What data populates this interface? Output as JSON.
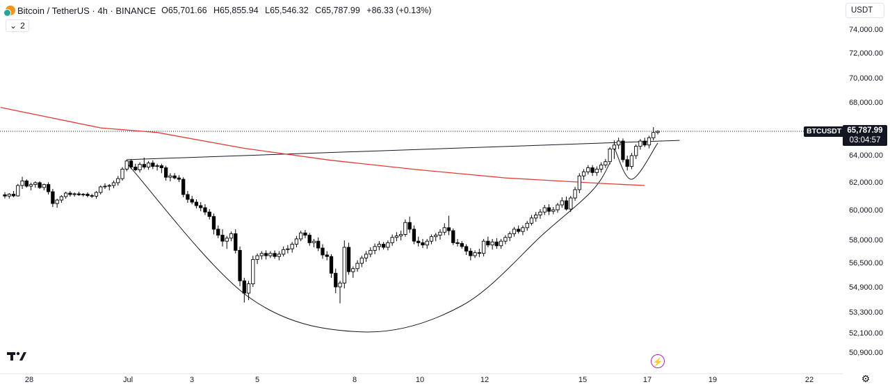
{
  "header": {
    "symbol_title": "Bitcoin / TetherUS · 4h · BINANCE",
    "o_label": "O",
    "o_value": "65,701.66",
    "h_label": "H",
    "h_value": "65,855.94",
    "l_label": "L",
    "l_value": "65,546.32",
    "c_label": "C",
    "c_value": "65,787.99",
    "change": "+86.33 (+0.13%)",
    "indicator_count": "2"
  },
  "currency_select": "USDT",
  "price_tag": {
    "symbol": "BTCUSDT",
    "price": "65,787.99",
    "countdown": "03:04:57"
  },
  "icons": {
    "logo": "tradingview-logo-icon",
    "bolt": "lightning-icon",
    "settings": "gear-icon",
    "chevron": "chevron-down-icon"
  },
  "colors": {
    "up": "#ffffff",
    "down": "#000000",
    "ma_line": "#e53935",
    "pattern": "#131722",
    "accent": "#9c27b0"
  },
  "chart_data": {
    "type": "candlestick",
    "instrument": "BTCUSDT",
    "timeframe": "4h",
    "y_ticks": [
      "74,000.00",
      "72,000.00",
      "70,000.00",
      "68,000.00",
      "64,000.00",
      "62,000.00",
      "60,000.00",
      "58,000.00",
      "56,500.00",
      "54,900.00",
      "53,300.00",
      "52,100.00",
      "50,900.00"
    ],
    "x_ticks": [
      "28",
      "Jul",
      "3",
      "5",
      "8",
      "10",
      "12",
      "15",
      "17",
      "19",
      "22"
    ],
    "last_price": 65787.99,
    "candles": [
      [
        61080,
        61260,
        60820,
        60990
      ],
      [
        60990,
        61200,
        60800,
        61120
      ],
      [
        61120,
        61350,
        60900,
        61000
      ],
      [
        61000,
        61860,
        60950,
        61750
      ],
      [
        61750,
        62380,
        61500,
        62080
      ],
      [
        62080,
        62200,
        61600,
        61700
      ],
      [
        61700,
        61950,
        61400,
        61820
      ],
      [
        61820,
        62050,
        61600,
        61950
      ],
      [
        61950,
        62050,
        61500,
        61600
      ],
      [
        61600,
        61880,
        61400,
        61820
      ],
      [
        61820,
        61980,
        61100,
        61300
      ],
      [
        61300,
        61500,
        60200,
        60450
      ],
      [
        60450,
        60800,
        60150,
        60700
      ],
      [
        60700,
        61050,
        60500,
        60950
      ],
      [
        60950,
        61300,
        60800,
        61200
      ],
      [
        61200,
        61350,
        60950,
        61100
      ],
      [
        61100,
        61250,
        60950,
        61150
      ],
      [
        61150,
        61300,
        61000,
        61080
      ],
      [
        61080,
        61200,
        60950,
        61120
      ],
      [
        61120,
        61250,
        60900,
        61020
      ],
      [
        61020,
        61150,
        60850,
        60980
      ],
      [
        60980,
        61350,
        60800,
        61250
      ],
      [
        61250,
        61750,
        61100,
        61650
      ],
      [
        61650,
        61900,
        61500,
        61700
      ],
      [
        61700,
        61850,
        61400,
        61750
      ],
      [
        61750,
        62100,
        61550,
        61950
      ],
      [
        61950,
        62450,
        61750,
        62250
      ],
      [
        62250,
        63100,
        62100,
        62950
      ],
      [
        62950,
        63650,
        62800,
        63550
      ],
      [
        63550,
        63700,
        62950,
        63100
      ],
      [
        63100,
        63350,
        62800,
        62900
      ],
      [
        62900,
        63450,
        62700,
        63300
      ],
      [
        63300,
        63800,
        62950,
        63100
      ],
      [
        63100,
        63550,
        62900,
        63400
      ],
      [
        63400,
        63600,
        62950,
        63150
      ],
      [
        63150,
        63350,
        62850,
        63200
      ],
      [
        63200,
        63350,
        62650,
        63050
      ],
      [
        63050,
        63200,
        62100,
        62350
      ],
      [
        62350,
        62650,
        62050,
        62450
      ],
      [
        62450,
        62650,
        62200,
        62300
      ],
      [
        62300,
        62500,
        62000,
        62200
      ],
      [
        62200,
        62350,
        60900,
        61100
      ],
      [
        61100,
        61350,
        60500,
        60750
      ],
      [
        60750,
        61000,
        60400,
        60550
      ],
      [
        60550,
        60750,
        60100,
        60300
      ],
      [
        60300,
        60550,
        59900,
        60150
      ],
      [
        60150,
        60400,
        59650,
        59850
      ],
      [
        59850,
        60050,
        59350,
        59550
      ],
      [
        59550,
        59750,
        58350,
        58700
      ],
      [
        58700,
        58950,
        58100,
        58300
      ],
      [
        58300,
        58700,
        57550,
        57900
      ],
      [
        57900,
        58250,
        57400,
        58100
      ],
      [
        58100,
        58550,
        57900,
        58400
      ],
      [
        58400,
        58700,
        57100,
        57300
      ],
      [
        57300,
        57550,
        54950,
        55300
      ],
      [
        55300,
        55500,
        53900,
        54500
      ],
      [
        54500,
        55300,
        54050,
        55100
      ],
      [
        55100,
        56950,
        54900,
        56700
      ],
      [
        56700,
        57100,
        56400,
        56950
      ],
      [
        56950,
        57250,
        56700,
        57100
      ],
      [
        57100,
        57300,
        56700,
        56950
      ],
      [
        56950,
        57250,
        56800,
        57100
      ],
      [
        57100,
        57300,
        56750,
        56900
      ],
      [
        56900,
        57250,
        56650,
        57050
      ],
      [
        57050,
        57550,
        56900,
        57350
      ],
      [
        57350,
        57650,
        57100,
        57400
      ],
      [
        57400,
        57850,
        57150,
        57700
      ],
      [
        57700,
        58250,
        57500,
        58050
      ],
      [
        58050,
        58600,
        57900,
        58450
      ],
      [
        58450,
        58650,
        58100,
        58300
      ],
      [
        58300,
        58450,
        57600,
        57800
      ],
      [
        57800,
        58050,
        57500,
        57900
      ],
      [
        57900,
        58150,
        57250,
        57450
      ],
      [
        57450,
        57700,
        56750,
        57000
      ],
      [
        57000,
        57250,
        56650,
        56900
      ],
      [
        56900,
        57050,
        55500,
        55800
      ],
      [
        55800,
        56100,
        54500,
        54900
      ],
      [
        54900,
        55300,
        53850,
        55150
      ],
      [
        55150,
        57950,
        54800,
        57500
      ],
      [
        57500,
        57800,
        55700,
        55900
      ],
      [
        55900,
        56250,
        55500,
        56100
      ],
      [
        56100,
        56650,
        55900,
        56450
      ],
      [
        56450,
        56950,
        56200,
        56800
      ],
      [
        56800,
        57250,
        56550,
        57050
      ],
      [
        57050,
        57500,
        56850,
        57300
      ],
      [
        57300,
        57750,
        57050,
        57550
      ],
      [
        57550,
        57900,
        57300,
        57700
      ],
      [
        57700,
        57850,
        57350,
        57500
      ],
      [
        57500,
        57950,
        57300,
        57800
      ],
      [
        57800,
        58350,
        57600,
        58150
      ],
      [
        58150,
        58500,
        57900,
        58250
      ],
      [
        58250,
        58600,
        57950,
        58350
      ],
      [
        58350,
        59350,
        58200,
        59150
      ],
      [
        59150,
        59550,
        58450,
        58700
      ],
      [
        58700,
        58950,
        57700,
        57900
      ],
      [
        57900,
        58200,
        57550,
        57800
      ],
      [
        57800,
        58050,
        57450,
        57650
      ],
      [
        57650,
        58050,
        57400,
        57900
      ],
      [
        57900,
        58350,
        57700,
        58200
      ],
      [
        58200,
        58450,
        57900,
        58300
      ],
      [
        58300,
        58700,
        58000,
        58500
      ],
      [
        58500,
        59100,
        58300,
        58800
      ],
      [
        58800,
        59600,
        58300,
        58600
      ],
      [
        58600,
        58750,
        57650,
        57800
      ],
      [
        57800,
        58050,
        57550,
        57750
      ],
      [
        57750,
        57900,
        57400,
        57550
      ],
      [
        57550,
        57700,
        57000,
        57250
      ],
      [
        57250,
        57450,
        56650,
        56950
      ],
      [
        56950,
        57300,
        56800,
        57150
      ],
      [
        57150,
        57400,
        56850,
        57100
      ],
      [
        57100,
        58050,
        56900,
        57900
      ],
      [
        57900,
        58200,
        57500,
        57650
      ],
      [
        57650,
        58050,
        57350,
        57850
      ],
      [
        57850,
        58100,
        57400,
        57600
      ],
      [
        57600,
        58050,
        57400,
        57900
      ],
      [
        57900,
        58300,
        57700,
        58150
      ],
      [
        58150,
        58550,
        57900,
        58400
      ],
      [
        58400,
        58850,
        58200,
        58700
      ],
      [
        58700,
        58950,
        58400,
        58550
      ],
      [
        58550,
        58950,
        58300,
        58800
      ],
      [
        58800,
        59250,
        58600,
        59100
      ],
      [
        59100,
        59650,
        58950,
        59450
      ],
      [
        59450,
        59850,
        59200,
        59650
      ],
      [
        59650,
        60050,
        59400,
        59850
      ],
      [
        59850,
        60350,
        59650,
        60150
      ],
      [
        60150,
        60400,
        59650,
        59900
      ],
      [
        59900,
        60200,
        59700,
        60000
      ],
      [
        60000,
        60500,
        59800,
        60350
      ],
      [
        60350,
        60900,
        60150,
        60650
      ],
      [
        60650,
        60950,
        59950,
        60050
      ],
      [
        60050,
        61000,
        59850,
        60850
      ],
      [
        60850,
        61650,
        60650,
        61450
      ],
      [
        61450,
        62650,
        61200,
        62450
      ],
      [
        62450,
        62950,
        62150,
        62750
      ],
      [
        62750,
        63250,
        62550,
        63050
      ],
      [
        63050,
        63250,
        62450,
        62700
      ],
      [
        62700,
        63150,
        62450,
        62950
      ],
      [
        62950,
        63450,
        62700,
        63250
      ],
      [
        63250,
        63700,
        63050,
        63500
      ],
      [
        63500,
        64600,
        63300,
        64450
      ],
      [
        64450,
        65100,
        63700,
        64750
      ],
      [
        64750,
        65300,
        64450,
        65050
      ],
      [
        65050,
        65250,
        63450,
        63650
      ],
      [
        63650,
        63950,
        62850,
        63150
      ],
      [
        63150,
        64150,
        62950,
        63950
      ],
      [
        63950,
        64800,
        63700,
        64650
      ],
      [
        64650,
        65200,
        64400,
        65050
      ],
      [
        65050,
        65300,
        64600,
        64750
      ],
      [
        64750,
        65450,
        64500,
        65300
      ],
      [
        65300,
        66100,
        65100,
        65700
      ],
      [
        65700,
        65860,
        65550,
        65790
      ]
    ],
    "ma_line": {
      "color": "#e53935",
      "points": [
        [
          -1,
          67600
        ],
        [
          22,
          66050
        ],
        [
          35,
          65700
        ],
        [
          55,
          64500
        ],
        [
          75,
          63600
        ],
        [
          95,
          62900
        ],
        [
          115,
          62300
        ],
        [
          137,
          61900
        ],
        [
          147,
          61750
        ]
      ]
    },
    "pattern_lines": {
      "neckline": [
        [
          28,
          63650
        ],
        [
          155,
          65100
        ]
      ],
      "cup": [
        [
          28,
          63400
        ],
        [
          56,
          54250
        ],
        [
          82,
          52150
        ],
        [
          105,
          53700
        ],
        [
          124,
          58450
        ],
        [
          135,
          61400
        ],
        [
          139,
          63400
        ]
      ],
      "handle": [
        [
          140,
          64550
        ],
        [
          144,
          62200
        ],
        [
          150,
          64900
        ]
      ]
    }
  }
}
